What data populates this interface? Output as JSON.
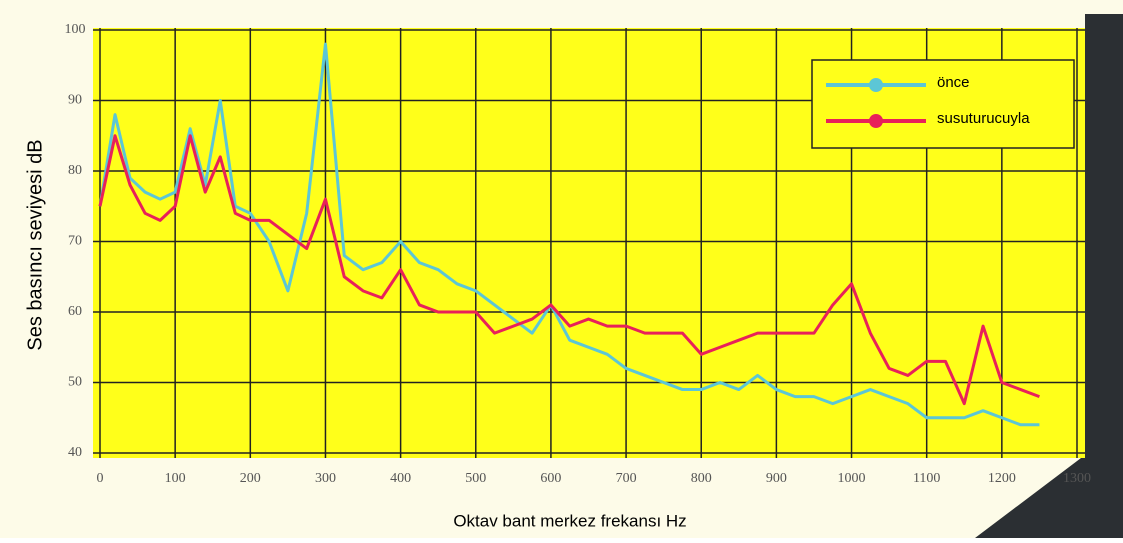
{
  "chart_data": {
    "type": "line",
    "ylabel": "Ses basıncı seviyesi dB",
    "xlabel": "Oktav bant merkez frekansı Hz",
    "x": [
      0,
      20,
      40,
      60,
      80,
      100,
      120,
      140,
      160,
      180,
      200,
      225,
      250,
      275,
      300,
      325,
      350,
      375,
      400,
      425,
      450,
      475,
      500,
      525,
      550,
      575,
      600,
      625,
      650,
      675,
      700,
      725,
      750,
      775,
      800,
      825,
      850,
      875,
      900,
      925,
      950,
      975,
      1000,
      1025,
      1050,
      1075,
      1100,
      1125,
      1150,
      1175,
      1200,
      1225,
      1250
    ],
    "series": [
      {
        "name": "önce",
        "color": "#5cc6d6",
        "values": [
          75,
          88,
          79,
          77,
          76,
          77,
          86,
          78,
          90,
          75,
          74,
          70,
          63,
          74,
          98,
          68,
          66,
          67,
          70,
          67,
          66,
          64,
          63,
          61,
          59,
          57,
          61,
          56,
          55,
          54,
          52,
          51,
          50,
          49,
          49,
          50,
          49,
          51,
          49,
          48,
          48,
          47,
          48,
          49,
          48,
          47,
          45,
          45,
          45,
          46,
          45,
          44,
          44
        ]
      },
      {
        "name": "susuturucuyla",
        "color": "#e8215a",
        "values": [
          75,
          85,
          78,
          74,
          73,
          75,
          85,
          77,
          82,
          74,
          73,
          73,
          71,
          69,
          76,
          65,
          63,
          62,
          66,
          61,
          60,
          60,
          60,
          57,
          58,
          59,
          61,
          58,
          59,
          58,
          58,
          57,
          57,
          57,
          54,
          55,
          56,
          57,
          57,
          57,
          57,
          61,
          64,
          57,
          52,
          51,
          53,
          53,
          47,
          58,
          50,
          49,
          48
        ]
      }
    ],
    "xlim": [
      0,
      1300
    ],
    "xticks": [
      0,
      100,
      200,
      300,
      400,
      500,
      600,
      700,
      800,
      900,
      1000,
      1100,
      1200,
      1300
    ],
    "ylim": [
      40,
      100
    ],
    "yticks": [
      40,
      50,
      60,
      70,
      80,
      90,
      100
    ],
    "grid": true,
    "legend": "top-right"
  }
}
